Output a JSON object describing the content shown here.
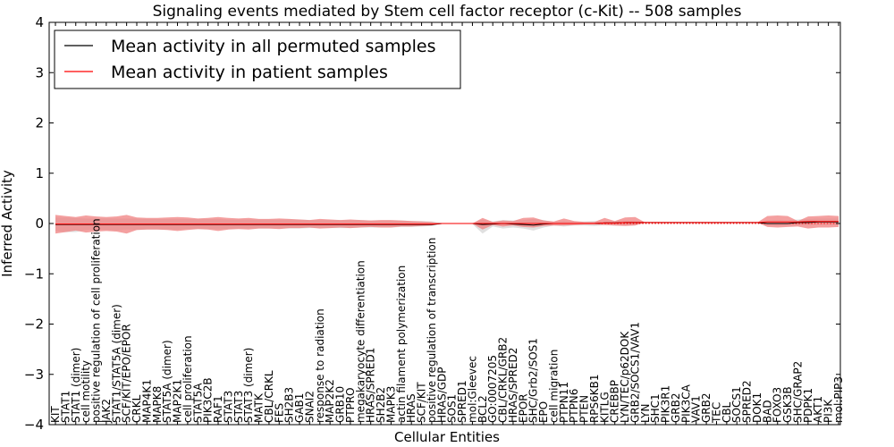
{
  "chart_data": {
    "type": "line",
    "title": "Signaling events mediated by Stem cell factor receptor (c-Kit) -- 508 samples",
    "xlabel": "Cellular Entities",
    "ylabel": "Inferred Activity",
    "ylim": [
      -4,
      4
    ],
    "yticks": [
      -4,
      -3,
      -2,
      -1,
      0,
      1,
      2,
      3,
      4
    ],
    "ytick_labels": [
      "−4",
      "−3",
      "−2",
      "−1",
      "0",
      "1",
      "2",
      "3",
      "4"
    ],
    "legend": {
      "position": "top-left"
    },
    "categories": [
      "KIT",
      "STAT1",
      "STAT1 (dimer)",
      "cell motility",
      "positive regulation of cell proliferation",
      "JAK2",
      "STAT1/STAT5A (dimer)",
      "SCF/KIT/EPO/EPOR",
      "CRKL",
      "MAP4K1",
      "MAPK8",
      "STAT5A (dimer)",
      "MAP2K1",
      "cell proliferation",
      "STAT5A",
      "PIK3C2B",
      "RAF1",
      "STAT3",
      "STAT3",
      "STAT3 (dimer)",
      "MATK",
      "CBL/CRKL",
      "FES",
      "SH2B3",
      "GAB1",
      "SNAI2",
      "response to radiation",
      "MAP2K2",
      "GRB10",
      "PTPRO",
      "megakaryocyte differentiation",
      "HRAS/SPRED1",
      "SH2B2",
      "MAPK3",
      "actin filament polymerization",
      "HRAS",
      "SCF/KIT",
      "positive regulation of transcription",
      "HRAS/GDP",
      "SOS1",
      "SPRED1",
      "mol:Gleevec",
      "BCL2",
      "GO:0007205",
      "CBL/CRKL/GRB2",
      "HRAS/SPRED2",
      "EPOR",
      "SHC/Grb2/SOS1",
      "EPO",
      "cell migration",
      "PTPN11",
      "PTPN6",
      "PTEN",
      "RPS6KB1",
      "KITLG",
      "CREBBP",
      "LYN/TEC/p62DOK",
      "GRB2/SOCS1/VAV1",
      "LYN",
      "SHC1",
      "PIK3R1",
      "GRB2",
      "PIK3CA",
      "VAV1",
      "GRB2",
      "TEC",
      "CBL",
      "SOCS1",
      "SPRED2",
      "DOK1",
      "BAD",
      "FOXO3",
      "GSK3B",
      "SHC/GRAP2",
      "PDPK1",
      "AKT1",
      "PI3K",
      "mol:PIP3"
    ],
    "series": [
      {
        "name": "Mean activity in all permuted samples",
        "color": "#000000",
        "values": [
          -0.02,
          -0.02,
          -0.02,
          -0.02,
          -0.02,
          -0.02,
          -0.02,
          -0.02,
          -0.02,
          -0.02,
          -0.02,
          -0.02,
          -0.02,
          -0.02,
          -0.02,
          -0.02,
          -0.02,
          -0.02,
          -0.02,
          -0.02,
          -0.02,
          -0.02,
          -0.02,
          -0.02,
          -0.02,
          -0.02,
          -0.02,
          -0.02,
          -0.02,
          -0.02,
          -0.02,
          -0.02,
          -0.02,
          -0.02,
          -0.02,
          -0.02,
          -0.02,
          -0.02,
          0.0,
          0.0,
          0.0,
          0.0,
          -0.02,
          -0.01,
          0.0,
          -0.01,
          -0.02,
          -0.03,
          -0.01,
          0.0,
          0.0,
          0.0,
          0.0,
          0.0,
          0.01,
          0.01,
          0.02,
          0.02,
          0.02,
          0.02,
          0.02,
          0.02,
          0.02,
          0.02,
          0.02,
          0.02,
          0.02,
          0.02,
          0.02,
          0.02,
          0.0,
          0.0,
          0.0,
          0.02,
          0.02,
          0.03,
          0.03,
          0.03
        ],
        "band_low": [
          -0.15,
          -0.17,
          -0.17,
          -0.13,
          -0.12,
          -0.13,
          -0.14,
          -0.12,
          -0.13,
          -0.12,
          -0.12,
          -0.12,
          -0.12,
          -0.11,
          -0.11,
          -0.11,
          -0.11,
          -0.11,
          -0.1,
          -0.1,
          -0.1,
          -0.1,
          -0.1,
          -0.1,
          -0.1,
          -0.09,
          -0.09,
          -0.09,
          -0.09,
          -0.09,
          -0.08,
          -0.08,
          -0.08,
          -0.08,
          -0.07,
          -0.07,
          -0.06,
          -0.05,
          -0.01,
          -0.01,
          -0.01,
          -0.01,
          -0.2,
          -0.06,
          -0.1,
          -0.08,
          -0.1,
          -0.14,
          -0.08,
          -0.04,
          -0.06,
          -0.04,
          -0.04,
          -0.05,
          -0.03,
          -0.04,
          -0.04,
          -0.03,
          0.01,
          0.01,
          0.01,
          0.01,
          0.01,
          0.01,
          0.01,
          0.01,
          0.01,
          0.01,
          0.01,
          0.01,
          -0.04,
          -0.05,
          -0.04,
          -0.03,
          -0.03,
          -0.02,
          -0.02,
          -0.02
        ],
        "band_high": [
          0.12,
          0.12,
          0.11,
          0.1,
          0.1,
          0.1,
          0.1,
          0.1,
          0.1,
          0.09,
          0.09,
          0.09,
          0.09,
          0.09,
          0.09,
          0.09,
          0.09,
          0.08,
          0.08,
          0.08,
          0.08,
          0.08,
          0.08,
          0.08,
          0.08,
          0.07,
          0.07,
          0.07,
          0.07,
          0.07,
          0.07,
          0.06,
          0.06,
          0.06,
          0.06,
          0.05,
          0.05,
          0.04,
          0.01,
          0.01,
          0.01,
          0.01,
          0.08,
          0.04,
          0.07,
          0.06,
          0.07,
          0.09,
          0.07,
          0.03,
          0.05,
          0.04,
          0.04,
          0.05,
          0.04,
          0.05,
          0.06,
          0.05,
          0.03,
          0.03,
          0.03,
          0.03,
          0.03,
          0.03,
          0.03,
          0.03,
          0.03,
          0.03,
          0.03,
          0.03,
          0.06,
          0.07,
          0.06,
          0.08,
          0.09,
          0.1,
          0.1,
          0.1
        ]
      },
      {
        "name": "Mean activity in patient samples",
        "color": "#ff0000",
        "values": [
          -0.01,
          -0.01,
          -0.01,
          -0.01,
          -0.01,
          -0.01,
          -0.01,
          -0.01,
          -0.01,
          -0.01,
          -0.01,
          -0.01,
          -0.01,
          -0.01,
          -0.01,
          -0.01,
          -0.01,
          -0.01,
          -0.01,
          -0.01,
          -0.01,
          -0.01,
          -0.01,
          -0.01,
          -0.01,
          -0.01,
          -0.01,
          -0.01,
          -0.01,
          -0.01,
          -0.01,
          -0.01,
          -0.01,
          -0.01,
          -0.01,
          -0.01,
          -0.01,
          -0.01,
          0.0,
          0.0,
          0.0,
          0.0,
          0.0,
          0.0,
          0.0,
          0.0,
          0.0,
          0.0,
          0.0,
          0.0,
          0.0,
          0.0,
          0.0,
          0.0,
          0.01,
          0.01,
          0.02,
          0.02,
          0.02,
          0.02,
          0.02,
          0.02,
          0.02,
          0.02,
          0.02,
          0.02,
          0.02,
          0.02,
          0.02,
          0.02,
          0.03,
          0.03,
          0.03,
          0.03,
          0.04,
          0.04,
          0.04,
          0.04
        ],
        "band_low": [
          -0.2,
          -0.17,
          -0.14,
          -0.18,
          -0.16,
          -0.15,
          -0.16,
          -0.2,
          -0.13,
          -0.12,
          -0.12,
          -0.13,
          -0.15,
          -0.13,
          -0.11,
          -0.12,
          -0.15,
          -0.12,
          -0.11,
          -0.12,
          -0.1,
          -0.1,
          -0.11,
          -0.09,
          -0.09,
          -0.08,
          -0.1,
          -0.09,
          -0.08,
          -0.09,
          -0.08,
          -0.07,
          -0.08,
          -0.08,
          -0.06,
          -0.06,
          -0.05,
          -0.04,
          0.0,
          0.0,
          0.0,
          0.0,
          -0.12,
          -0.03,
          -0.06,
          -0.04,
          -0.07,
          -0.08,
          -0.05,
          -0.04,
          -0.04,
          -0.03,
          -0.02,
          -0.02,
          -0.03,
          -0.04,
          -0.05,
          -0.04,
          0.02,
          0.02,
          0.02,
          0.02,
          0.02,
          0.02,
          0.02,
          0.02,
          0.02,
          0.02,
          0.02,
          0.02,
          -0.07,
          -0.08,
          -0.07,
          -0.06,
          -0.1,
          -0.08,
          -0.08,
          -0.07
        ],
        "band_high": [
          0.17,
          0.15,
          0.13,
          0.16,
          0.14,
          0.13,
          0.14,
          0.17,
          0.12,
          0.11,
          0.11,
          0.12,
          0.13,
          0.12,
          0.1,
          0.11,
          0.13,
          0.11,
          0.1,
          0.11,
          0.09,
          0.09,
          0.1,
          0.09,
          0.08,
          0.07,
          0.09,
          0.08,
          0.07,
          0.08,
          0.07,
          0.06,
          0.07,
          0.07,
          0.06,
          0.05,
          0.04,
          0.03,
          0.0,
          0.0,
          0.0,
          0.0,
          0.11,
          0.03,
          0.06,
          0.05,
          0.11,
          0.12,
          0.06,
          0.04,
          0.1,
          0.05,
          0.03,
          0.03,
          0.11,
          0.05,
          0.12,
          0.13,
          0.02,
          0.02,
          0.02,
          0.02,
          0.02,
          0.02,
          0.02,
          0.02,
          0.02,
          0.02,
          0.02,
          0.02,
          0.15,
          0.16,
          0.15,
          0.05,
          0.14,
          0.15,
          0.16,
          0.15
        ]
      }
    ]
  }
}
